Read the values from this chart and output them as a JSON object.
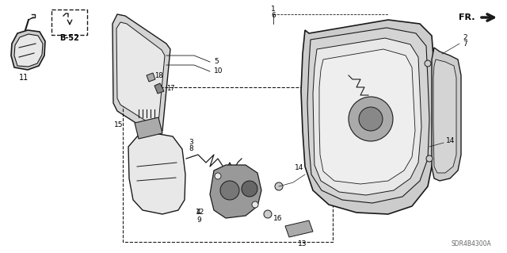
{
  "bg_color": "#ffffff",
  "line_color": "#1a1a1a",
  "gray_light": "#e8e8e8",
  "gray_mid": "#cccccc",
  "gray_dark": "#aaaaaa",
  "gray_body": "#d4d4d4",
  "diagram_code": "SDR4B4300A",
  "fig_width": 6.4,
  "fig_height": 3.19,
  "dpi": 100
}
